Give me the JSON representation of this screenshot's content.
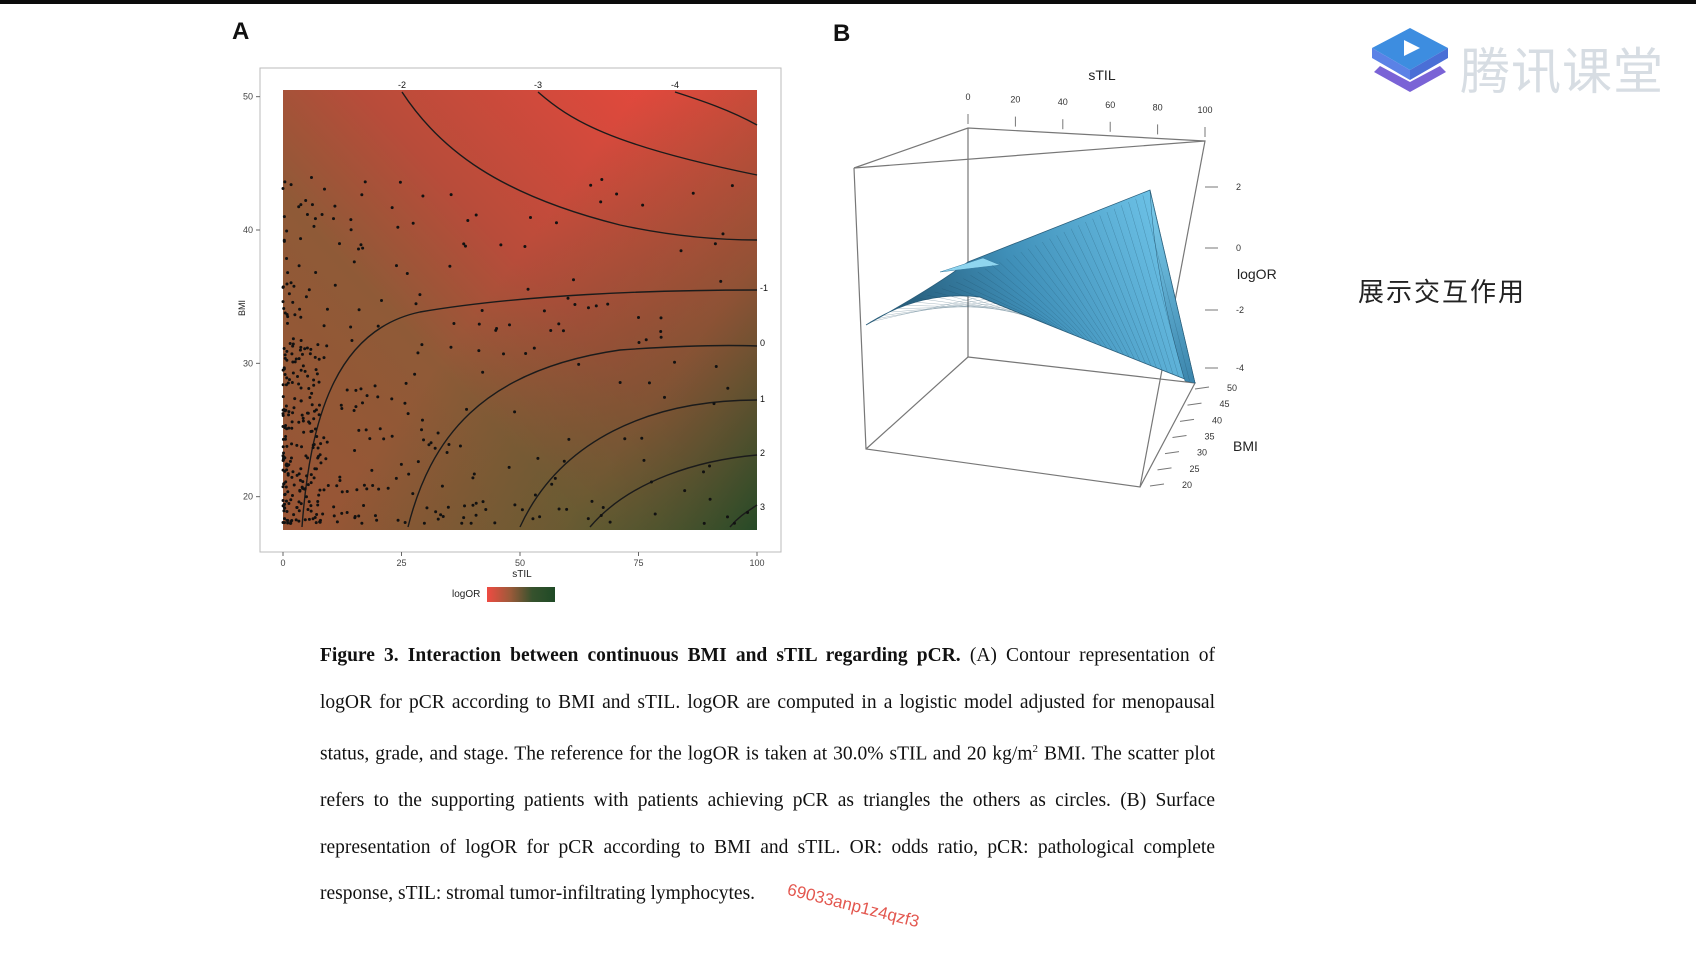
{
  "panels": {
    "a_label": "A",
    "b_label": "B"
  },
  "logo": {
    "text": "腾讯课堂",
    "icon": "play-icon"
  },
  "note": "展示交互作用",
  "legend": {
    "label": "logOR"
  },
  "caption": {
    "bold": "Figure 3. Interaction between continuous BMI and sTIL regarding pCR.",
    "line1_rest": " (A) Contour",
    "rest": "representation of logOR for pCR according to BMI and sTIL. logOR are computed in a logistic model adjusted for menopausal status, grade, and stage. The reference for the logOR is taken at 30.0% sTIL and 20 kg/m",
    "sup": "2",
    "rest2": " BMI. The scatter plot refers to the supporting patients with patients achieving pCR as triangles the others as circles. (B) Surface representation of logOR for pCR according to BMI and sTIL. OR: odds ratio, pCR: pathological complete response, sTIL: stromal tumor-infiltrating lymphocytes."
  },
  "watermark": "69033anp1z4qzf3",
  "chart_data": [
    {
      "type": "heatmap",
      "title": "",
      "xlabel": "sTIL",
      "ylabel": "BMI",
      "xlim": [
        0,
        100
      ],
      "ylim": [
        17.5,
        50.5
      ],
      "x_ticks": [
        "0",
        "25",
        "50",
        "75",
        "100"
      ],
      "y_ticks": [
        "20",
        "30",
        "40",
        "50"
      ],
      "contour_levels_top": [
        "-2",
        "-3",
        "-4"
      ],
      "contour_levels_right": [
        "-1",
        "0",
        "1",
        "2",
        "3"
      ],
      "color_scale": {
        "low": "#ef4b42",
        "high": "#1f4a26"
      },
      "legend_title": "logOR",
      "scatter_note": "patient points clustered at low sTIL (0-20) across BMI 18-44"
    },
    {
      "type": "surface",
      "xlabel": "sTIL",
      "ylabel": "BMI",
      "zlabel": "logOR",
      "x_ticks": [
        "0",
        "20",
        "40",
        "60",
        "80",
        "100"
      ],
      "y_ticks": [
        "20",
        "25",
        "30",
        "35",
        "40",
        "45",
        "50"
      ],
      "z_ticks": [
        "2",
        "0",
        "-2",
        "-4"
      ],
      "surface_color": "#4fa9d2"
    }
  ]
}
